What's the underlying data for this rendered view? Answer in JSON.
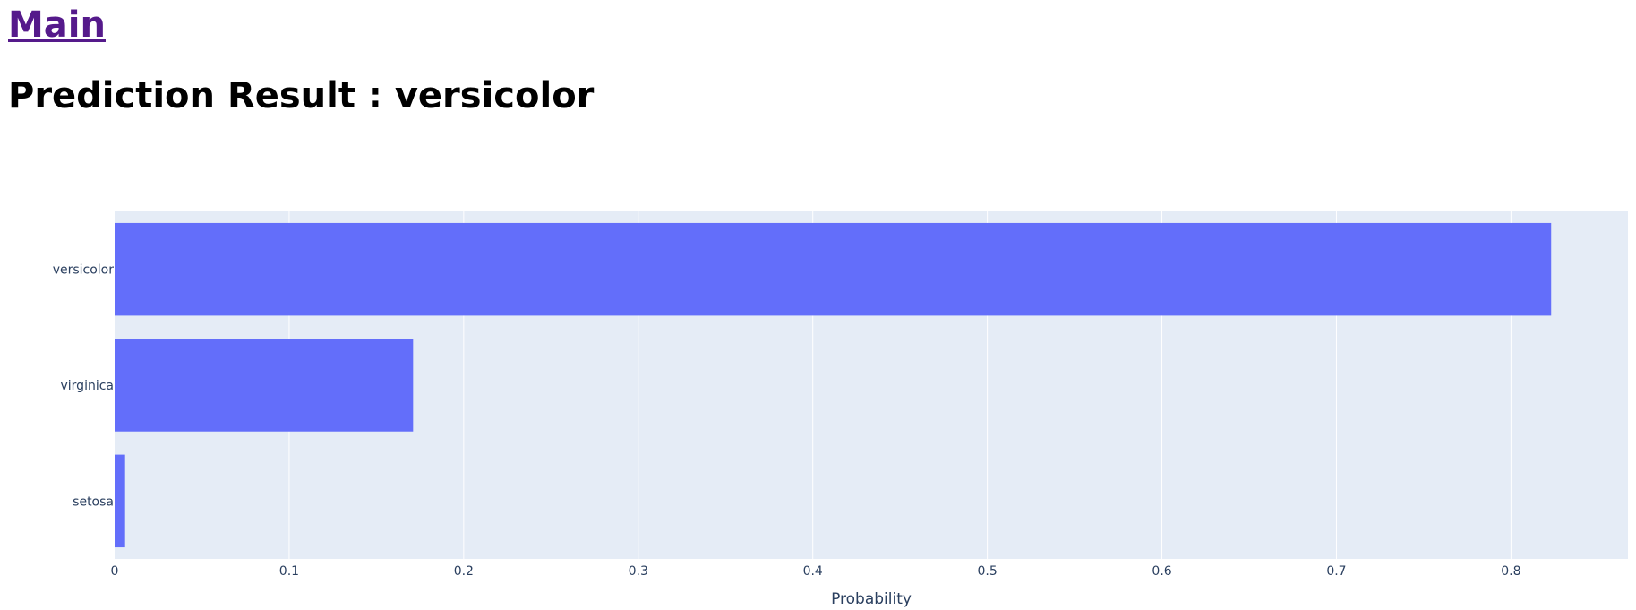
{
  "nav": {
    "main_link": "Main"
  },
  "heading": {
    "text": "Prediction Result : versicolor"
  },
  "colors": {
    "bar": "#636efa",
    "plot_bg": "#e5ecf6",
    "grid": "#ffffff",
    "text": "#2a3f5f",
    "link": "#551a8b"
  },
  "chart_data": {
    "type": "bar",
    "orientation": "horizontal",
    "categories": [
      "versicolor",
      "virginica",
      "setosa"
    ],
    "values": [
      0.823,
      0.171,
      0.006
    ],
    "xlabel": "Probability",
    "ylabel": "",
    "xlim": [
      0,
      0.867
    ],
    "xticks": [
      0,
      0.1,
      0.2,
      0.3,
      0.4,
      0.5,
      0.6,
      0.7,
      0.8
    ],
    "xtick_labels": [
      "0",
      "0.1",
      "0.2",
      "0.3",
      "0.4",
      "0.5",
      "0.6",
      "0.7",
      "0.8"
    ],
    "grid": true,
    "legend": "none"
  }
}
